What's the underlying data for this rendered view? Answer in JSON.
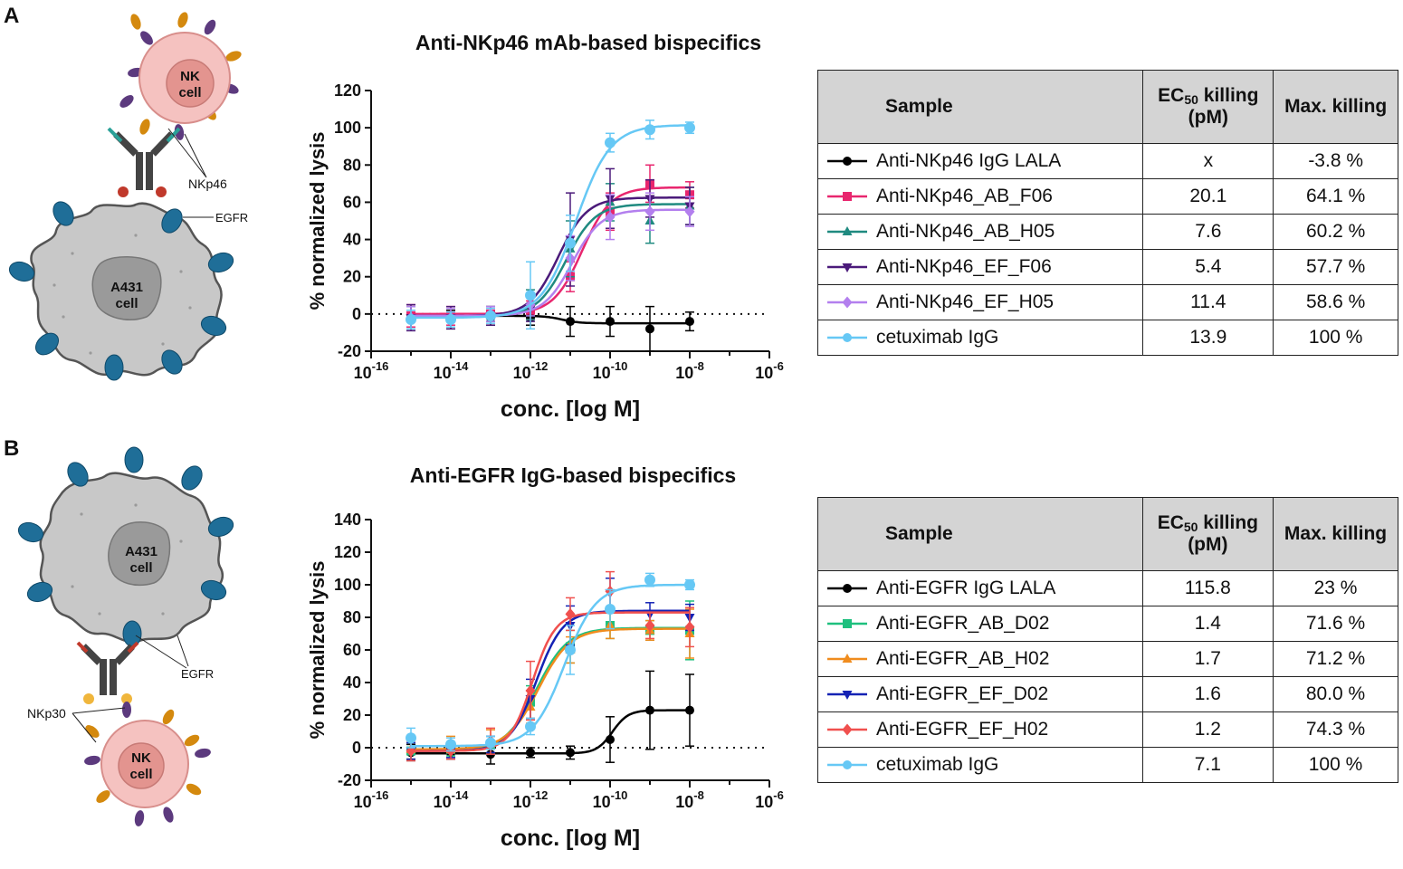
{
  "panels": [
    {
      "letter": "A",
      "title": "Anti-NKp46 mAb-based bispecifics",
      "diagram": {
        "nk_label_1": "NK",
        "nk_label_2": "cell",
        "a431_label_1": "A431",
        "a431_label_2": "cell",
        "receptor_label": "NKp46",
        "egfr_label": "EGFR"
      },
      "table": {
        "col_sample": "Sample",
        "col_ec50_main": "EC",
        "col_ec50_sub": "50",
        "col_ec50_rest": " killing",
        "col_ec50_unit": "(pM)",
        "col_max": "Max. killing",
        "rows": [
          {
            "sample": "Anti-NKp46 IgG LALA",
            "ec50": "x",
            "max": "-3.8 %",
            "color": "#000000",
            "marker": "circle"
          },
          {
            "sample": "Anti-NKp46_AB_F06",
            "ec50": "20.1",
            "max": "64.1 %",
            "color": "#e8266e",
            "marker": "square"
          },
          {
            "sample": "Anti-NKp46_AB_H05",
            "ec50": "7.6",
            "max": "60.2 %",
            "color": "#1f8a80",
            "marker": "triangle-up"
          },
          {
            "sample": "Anti-NKp46_EF_F06",
            "ec50": "5.4",
            "max": "57.7 %",
            "color": "#4b1a7a",
            "marker": "triangle-down"
          },
          {
            "sample": "Anti-NKp46_EF_H05",
            "ec50": "11.4",
            "max": "58.6 %",
            "color": "#b37fee",
            "marker": "diamond"
          },
          {
            "sample": "cetuximab IgG",
            "ec50": "13.9",
            "max": "100 %",
            "color": "#66c8f5",
            "marker": "circle"
          }
        ]
      }
    },
    {
      "letter": "B",
      "title": "Anti-EGFR IgG-based bispecifics",
      "diagram": {
        "nk_label_1": "NK",
        "nk_label_2": "cell",
        "a431_label_1": "A431",
        "a431_label_2": "cell",
        "receptor_label": "NKp30",
        "egfr_label": "EGFR"
      },
      "table": {
        "col_sample": "Sample",
        "col_ec50_main": "EC",
        "col_ec50_sub": "50",
        "col_ec50_rest": " killing",
        "col_ec50_unit": "(pM)",
        "col_max": "Max. killing",
        "rows": [
          {
            "sample": "Anti-EGFR IgG LALA",
            "ec50": "115.8",
            "max": "23 %",
            "color": "#000000",
            "marker": "circle"
          },
          {
            "sample": "Anti-EGFR_AB_D02",
            "ec50": "1.4",
            "max": "71.6 %",
            "color": "#1ec07e",
            "marker": "square"
          },
          {
            "sample": "Anti-EGFR_AB_H02",
            "ec50": "1.7",
            "max": "71.2 %",
            "color": "#f08c1e",
            "marker": "triangle-up"
          },
          {
            "sample": "Anti-EGFR_EF_D02",
            "ec50": "1.6",
            "max": "80.0 %",
            "color": "#1422b4",
            "marker": "triangle-down"
          },
          {
            "sample": "Anti-EGFR_EF_H02",
            "ec50": "1.2",
            "max": "74.3 %",
            "color": "#f0504e",
            "marker": "diamond"
          },
          {
            "sample": "cetuximab IgG",
            "ec50": "7.1",
            "max": "100 %",
            "color": "#66c8f5",
            "marker": "circle"
          }
        ]
      }
    }
  ],
  "chart_data": [
    {
      "type": "scatter",
      "title": "Anti-NKp46 mAb-based bispecifics",
      "xlabel": "conc. [log M]",
      "ylabel": "% normalized lysis",
      "xscale": "log",
      "xlim_exp": [
        -16,
        -6
      ],
      "xticks_exp": [
        -16,
        -14,
        -12,
        -10,
        -8,
        -6
      ],
      "ylim": [
        -20,
        120
      ],
      "yticks": [
        -20,
        0,
        20,
        40,
        60,
        80,
        100,
        120
      ],
      "reference_line_y": 0,
      "x_exp": [
        -15,
        -14,
        -13,
        -12,
        -11,
        -10,
        -9,
        -8
      ],
      "series": [
        {
          "name": "Anti-NKp46 IgG LALA",
          "color": "#000000",
          "marker": "circle",
          "values": [
            -3,
            -3,
            -2,
            -2,
            -4,
            -4,
            -8,
            -4
          ],
          "errors": [
            5,
            5,
            4,
            4,
            8,
            8,
            12,
            5
          ],
          "fit": {
            "bottom": -1,
            "top": -5,
            "logec50": -11.2,
            "hill": 2
          }
        },
        {
          "name": "Anti-NKp46_AB_F06",
          "color": "#e8266e",
          "marker": "square",
          "values": [
            -1,
            -1,
            0,
            2,
            20,
            55,
            70,
            64
          ],
          "errors": [
            6,
            5,
            4,
            5,
            8,
            10,
            10,
            7
          ],
          "fit": {
            "bottom": 0,
            "top": 68,
            "logec50": -10.7,
            "hill": 1.2
          }
        },
        {
          "name": "Anti-NKp46_AB_H05",
          "color": "#1f8a80",
          "marker": "triangle-up",
          "values": [
            -2,
            -2,
            0,
            5,
            35,
            60,
            50,
            58
          ],
          "errors": [
            6,
            5,
            4,
            8,
            15,
            10,
            12,
            10
          ],
          "fit": {
            "bottom": -1,
            "top": 59,
            "logec50": -11.1,
            "hill": 1.2
          }
        },
        {
          "name": "Anti-NKp46_EF_F06",
          "color": "#4b1a7a",
          "marker": "triangle-down",
          "values": [
            -2,
            -2,
            -1,
            3,
            40,
            62,
            62,
            58
          ],
          "errors": [
            7,
            6,
            5,
            7,
            25,
            16,
            10,
            10
          ],
          "fit": {
            "bottom": -1,
            "top": 62.5,
            "logec50": -11.3,
            "hill": 1.2
          }
        },
        {
          "name": "Anti-NKp46_EF_H05",
          "color": "#b37fee",
          "marker": "diamond",
          "values": [
            -2,
            -2,
            0,
            5,
            30,
            52,
            55,
            55
          ],
          "errors": [
            6,
            5,
            4,
            6,
            12,
            12,
            10,
            8
          ],
          "fit": {
            "bottom": -1,
            "top": 56,
            "logec50": -10.95,
            "hill": 1.2
          }
        },
        {
          "name": "cetuximab IgG",
          "color": "#66c8f5",
          "marker": "circle",
          "values": [
            -3,
            -3,
            -1,
            10,
            38,
            92,
            99,
            100
          ],
          "errors": [
            5,
            4,
            4,
            18,
            15,
            5,
            5,
            3
          ],
          "fit": {
            "bottom": -2,
            "top": 101.5,
            "logec50": -10.86,
            "hill": 1.0
          }
        }
      ]
    },
    {
      "type": "scatter",
      "title": "Anti-EGFR IgG-based bispecifics",
      "xlabel": "conc. [log M]",
      "ylabel": "% normalized lysis",
      "xscale": "log",
      "xlim_exp": [
        -16,
        -6
      ],
      "xticks_exp": [
        -16,
        -14,
        -12,
        -10,
        -8,
        -6
      ],
      "ylim": [
        -20,
        140
      ],
      "yticks": [
        -20,
        0,
        20,
        40,
        60,
        80,
        100,
        120,
        140
      ],
      "reference_line_y": 0,
      "x_exp": [
        -15,
        -14,
        -13,
        -12,
        -11,
        -10,
        -9,
        -8
      ],
      "series": [
        {
          "name": "Anti-EGFR IgG LALA",
          "color": "#000000",
          "marker": "circle",
          "values": [
            -3,
            -3,
            -4,
            -3,
            -3,
            5,
            23,
            23
          ],
          "errors": [
            5,
            4,
            6,
            3,
            4,
            14,
            24,
            22
          ],
          "fit": {
            "bottom": -3.5,
            "top": 23,
            "logec50": -9.94,
            "hill": 2.2
          }
        },
        {
          "name": "Anti-EGFR_AB_D02",
          "color": "#1ec07e",
          "marker": "square",
          "values": [
            -2,
            -1,
            2,
            28,
            62,
            75,
            72,
            72
          ],
          "errors": [
            5,
            4,
            5,
            10,
            10,
            8,
            6,
            18
          ],
          "fit": {
            "bottom": -2,
            "top": 73.5,
            "logec50": -11.85,
            "hill": 1.1
          }
        },
        {
          "name": "Anti-EGFR_AB_H02",
          "color": "#f08c1e",
          "marker": "triangle-up",
          "values": [
            -1,
            2,
            5,
            25,
            60,
            75,
            72,
            70
          ],
          "errors": [
            6,
            5,
            6,
            10,
            8,
            8,
            6,
            15
          ],
          "fit": {
            "bottom": -1,
            "top": 73,
            "logec50": -11.8,
            "hill": 1.1
          }
        },
        {
          "name": "Anti-EGFR_EF_D02",
          "color": "#1422b4",
          "marker": "triangle-down",
          "values": [
            -2,
            -2,
            2,
            30,
            75,
            95,
            82,
            80
          ],
          "errors": [
            5,
            4,
            5,
            12,
            12,
            9,
            7,
            8
          ],
          "fit": {
            "bottom": -2,
            "top": 84,
            "logec50": -11.85,
            "hill": 1.3
          }
        },
        {
          "name": "Anti-EGFR_EF_H02",
          "color": "#f0504e",
          "marker": "diamond",
          "values": [
            -2,
            -2,
            4,
            35,
            82,
            96,
            75,
            74
          ],
          "errors": [
            6,
            5,
            8,
            18,
            10,
            12,
            8,
            12
          ],
          "fit": {
            "bottom": -2,
            "top": 83,
            "logec50": -11.95,
            "hill": 1.5
          }
        },
        {
          "name": "cetuximab IgG",
          "color": "#66c8f5",
          "marker": "circle",
          "values": [
            6,
            2,
            3,
            13,
            60,
            85,
            103,
            100
          ],
          "errors": [
            6,
            4,
            4,
            5,
            15,
            12,
            4,
            3
          ],
          "fit": {
            "bottom": 1,
            "top": 100,
            "logec50": -11.15,
            "hill": 1.1
          }
        }
      ]
    }
  ]
}
